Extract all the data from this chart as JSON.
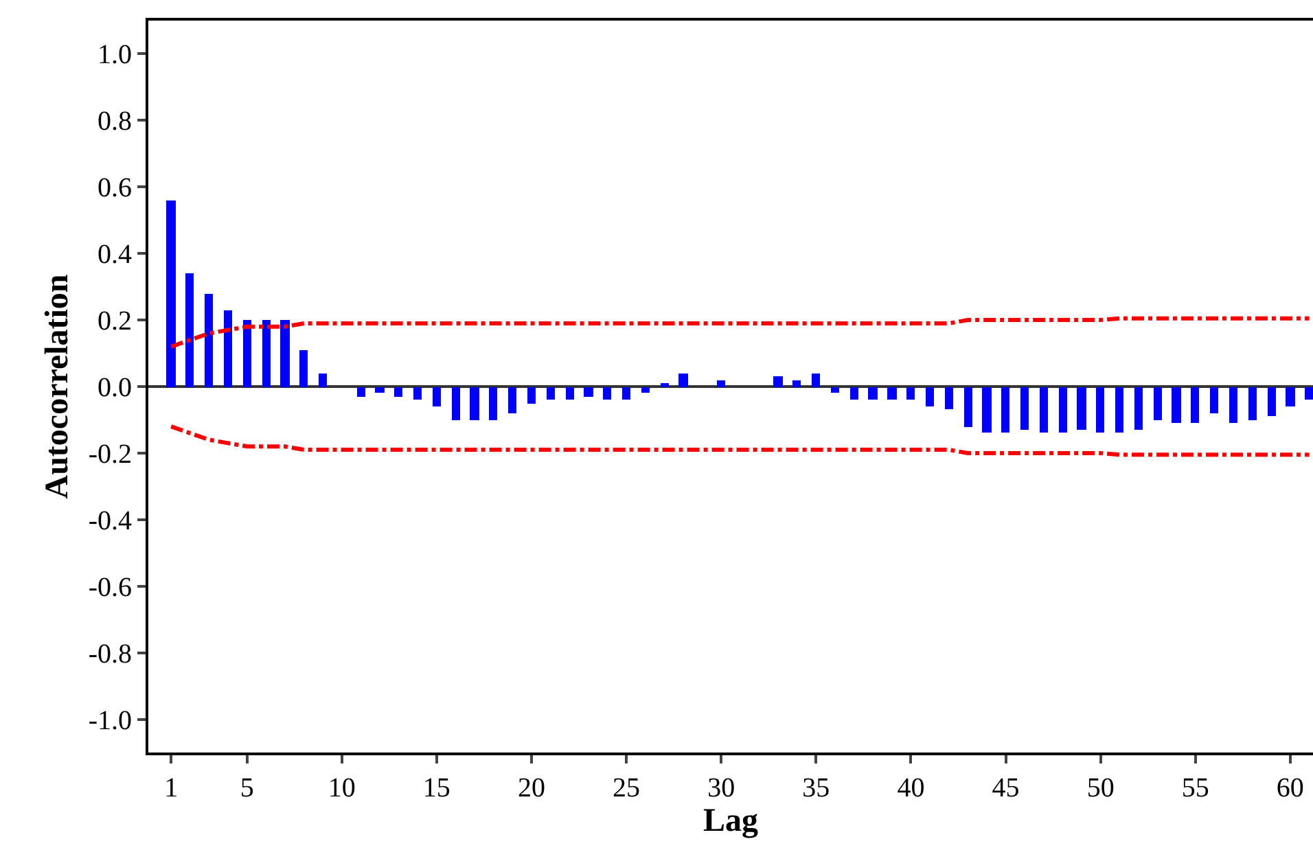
{
  "chart_data": {
    "type": "bar",
    "xlabel": "Lag",
    "ylabel": "Autocorrelation",
    "xlim": [
      -0.2,
      61.2
    ],
    "ylim": [
      -1.1,
      1.1
    ],
    "xticks": [
      1,
      5,
      10,
      15,
      20,
      25,
      30,
      35,
      40,
      45,
      50,
      55,
      60
    ],
    "yticks": [
      {
        "value": 1.0,
        "label": "1.0"
      },
      {
        "value": 0.8,
        "label": "0.8"
      },
      {
        "value": 0.6,
        "label": "0.6"
      },
      {
        "value": 0.4,
        "label": "0.4"
      },
      {
        "value": 0.2,
        "label": "0.2"
      },
      {
        "value": 0.0,
        "label": "0.0"
      },
      {
        "value": -0.2,
        "label": "-0.2"
      },
      {
        "value": -0.4,
        "label": "-0.4"
      },
      {
        "value": -0.6,
        "label": "-0.6"
      },
      {
        "value": -0.8,
        "label": "-0.8"
      },
      {
        "value": -1.0,
        "label": "-1.0"
      }
    ],
    "ref_lines": [
      {
        "axis": "y",
        "value": 0,
        "color": "#333333",
        "line_style": "solid"
      }
    ],
    "x": [
      1,
      2,
      3,
      4,
      5,
      6,
      7,
      8,
      9,
      10,
      11,
      12,
      13,
      14,
      15,
      16,
      17,
      18,
      19,
      20,
      21,
      22,
      23,
      24,
      25,
      26,
      27,
      28,
      29,
      30,
      31,
      32,
      33,
      34,
      35,
      36,
      37,
      38,
      39,
      40,
      41,
      42,
      43,
      44,
      45,
      46,
      47,
      48,
      49,
      50,
      51,
      52,
      53,
      54,
      55,
      56,
      57,
      58,
      59,
      60,
      61
    ],
    "series": [
      {
        "color": "#0000ff",
        "values": [
          0.56,
          0.34,
          0.28,
          0.23,
          0.2,
          0.2,
          0.2,
          0.11,
          0.04,
          0.0,
          -0.03,
          -0.02,
          -0.03,
          -0.04,
          -0.06,
          -0.1,
          -0.1,
          -0.1,
          -0.08,
          -0.05,
          -0.04,
          -0.04,
          -0.03,
          -0.04,
          -0.04,
          -0.02,
          0.01,
          0.04,
          0.0,
          0.02,
          0.0,
          0.0,
          0.03,
          0.02,
          0.04,
          -0.02,
          -0.04,
          -0.04,
          -0.04,
          -0.04,
          -0.06,
          -0.07,
          -0.12,
          -0.14,
          -0.14,
          -0.13,
          -0.14,
          -0.14,
          -0.13,
          -0.14,
          -0.14,
          -0.13,
          -0.1,
          -0.11,
          -0.11,
          -0.08,
          -0.11,
          -0.1,
          -0.09,
          -0.06,
          -0.04
        ]
      },
      {
        "type": "line",
        "color": "#ff0000",
        "line_style": "dashed",
        "x": [
          1,
          2,
          3,
          4,
          5,
          7,
          8,
          42,
          43,
          50,
          51,
          61
        ],
        "values": [
          0.12,
          0.14,
          0.16,
          0.17,
          0.18,
          0.18,
          0.19,
          0.19,
          0.2,
          0.2,
          0.205,
          0.205
        ]
      },
      {
        "type": "line",
        "color": "#ff0000",
        "line_style": "dashed",
        "x": [
          1,
          2,
          3,
          4,
          5,
          7,
          8,
          42,
          43,
          50,
          51,
          61
        ],
        "values": [
          -0.12,
          -0.14,
          -0.16,
          -0.17,
          -0.18,
          -0.18,
          -0.19,
          -0.19,
          -0.2,
          -0.2,
          -0.205,
          -0.205
        ]
      }
    ]
  }
}
